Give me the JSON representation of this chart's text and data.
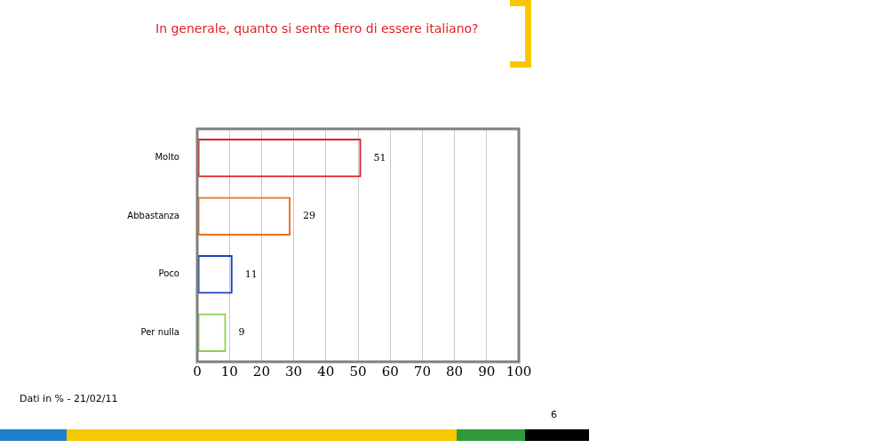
{
  "chart_data": {
    "type": "bar",
    "orientation": "horizontal",
    "title": "In generale, quanto si sente fiero di essere italiano?",
    "categories": [
      "Molto",
      "Abbastanza",
      "Poco",
      "Per nulla"
    ],
    "values": [
      51,
      29,
      11,
      9
    ],
    "colors": [
      "#e31e24",
      "#f07020",
      "#1f3fbf",
      "#8ccf50"
    ],
    "xlim": [
      0,
      100
    ],
    "xticks": [
      0,
      10,
      20,
      30,
      40,
      50,
      60,
      70,
      80,
      90,
      100
    ],
    "grid": "x",
    "legend": false,
    "data_labels": true,
    "annotations": [
      "Dati in % - 21/02/11",
      "6"
    ]
  }
}
